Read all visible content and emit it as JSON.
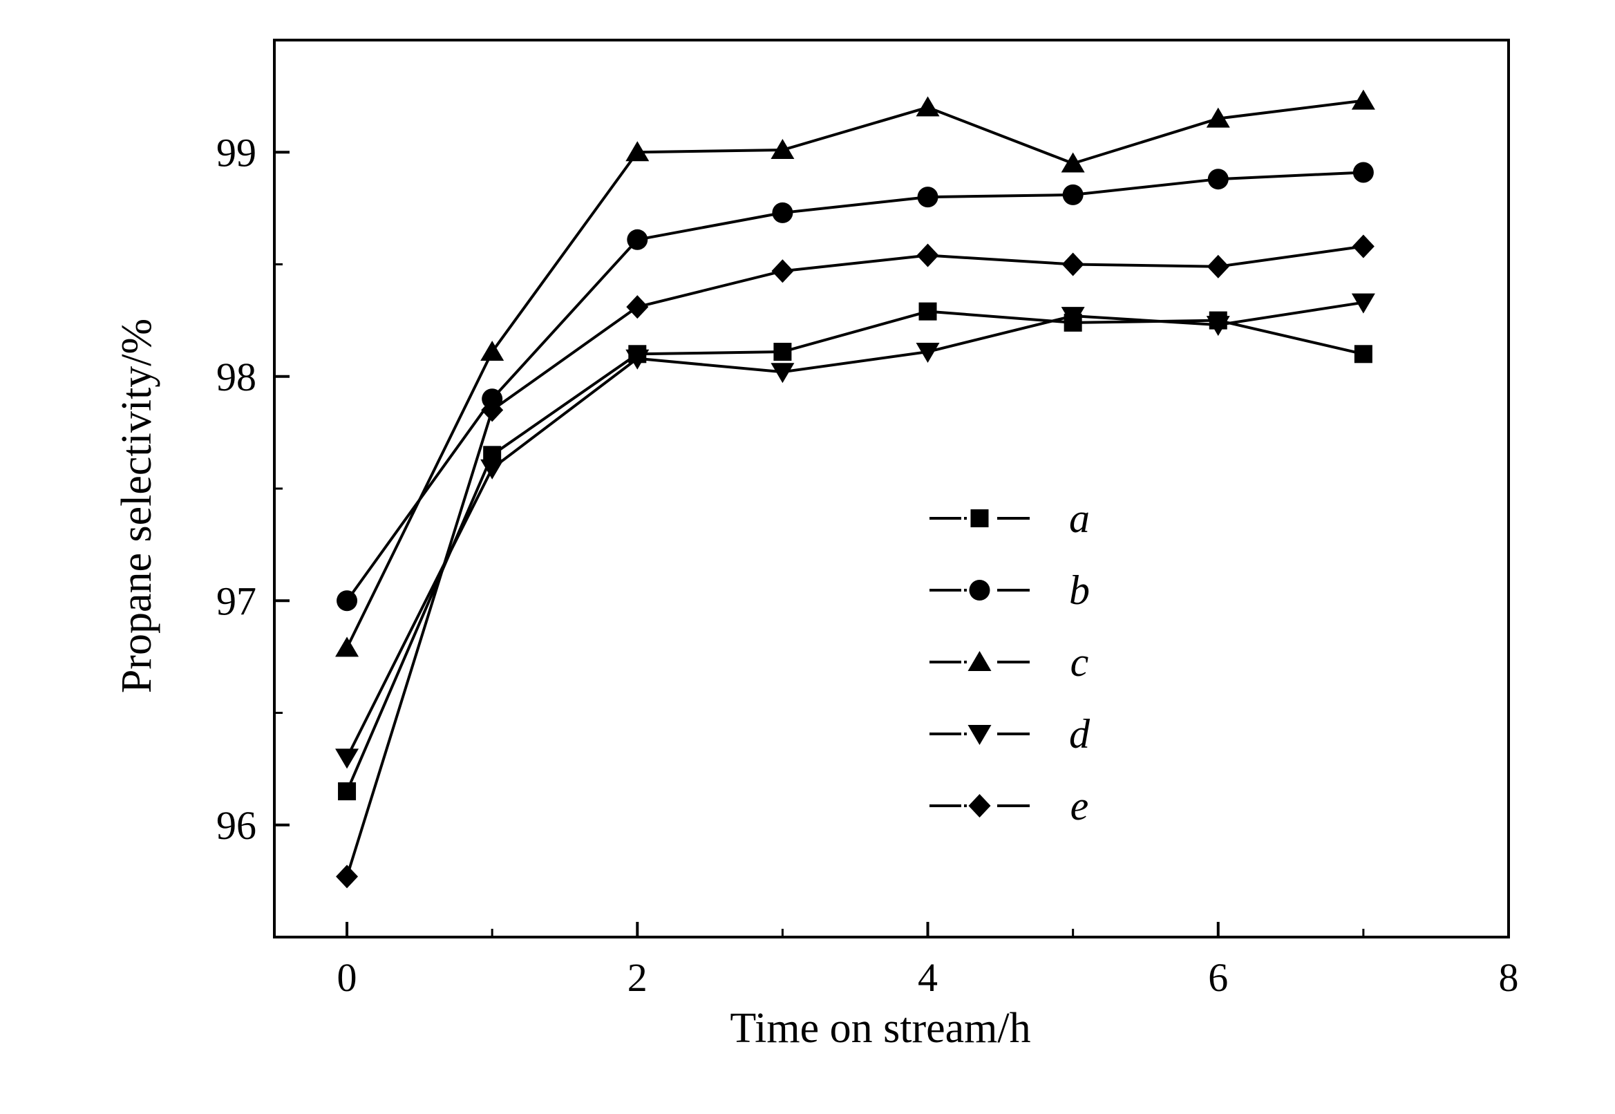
{
  "chart_data": {
    "type": "line",
    "xlabel": "Time on stream/h",
    "ylabel": "Propane selectivity/%",
    "xlim": [
      -0.5,
      8
    ],
    "ylim": [
      95.5,
      99.5
    ],
    "x_ticks": [
      0,
      2,
      4,
      6,
      8
    ],
    "x_tick_labels": [
      "0",
      "2",
      "4",
      "6",
      "8"
    ],
    "y_ticks": [
      96,
      97,
      98,
      99
    ],
    "y_tick_labels": [
      "96",
      "97",
      "98",
      "99"
    ],
    "grid": false,
    "legend_position": "center-right",
    "x": [
      0,
      1,
      2,
      3,
      4,
      5,
      6,
      7
    ],
    "series": [
      {
        "name": "a",
        "marker": "square",
        "values": [
          96.15,
          97.65,
          98.1,
          98.11,
          98.29,
          98.24,
          98.25,
          98.1
        ]
      },
      {
        "name": "b",
        "marker": "circle",
        "values": [
          97.0,
          97.9,
          98.61,
          98.73,
          98.8,
          98.81,
          98.88,
          98.91
        ]
      },
      {
        "name": "c",
        "marker": "triangle-up",
        "values": [
          96.79,
          98.11,
          99.0,
          99.01,
          99.2,
          98.95,
          99.15,
          99.23
        ]
      },
      {
        "name": "d",
        "marker": "triangle-down",
        "values": [
          96.3,
          97.59,
          98.08,
          98.02,
          98.11,
          98.27,
          98.23,
          98.33
        ]
      },
      {
        "name": "e",
        "marker": "diamond",
        "values": [
          95.77,
          97.85,
          98.31,
          98.47,
          98.54,
          98.5,
          98.49,
          98.58
        ]
      }
    ],
    "colors": {
      "line": "#000000",
      "background": "#ffffff"
    }
  }
}
